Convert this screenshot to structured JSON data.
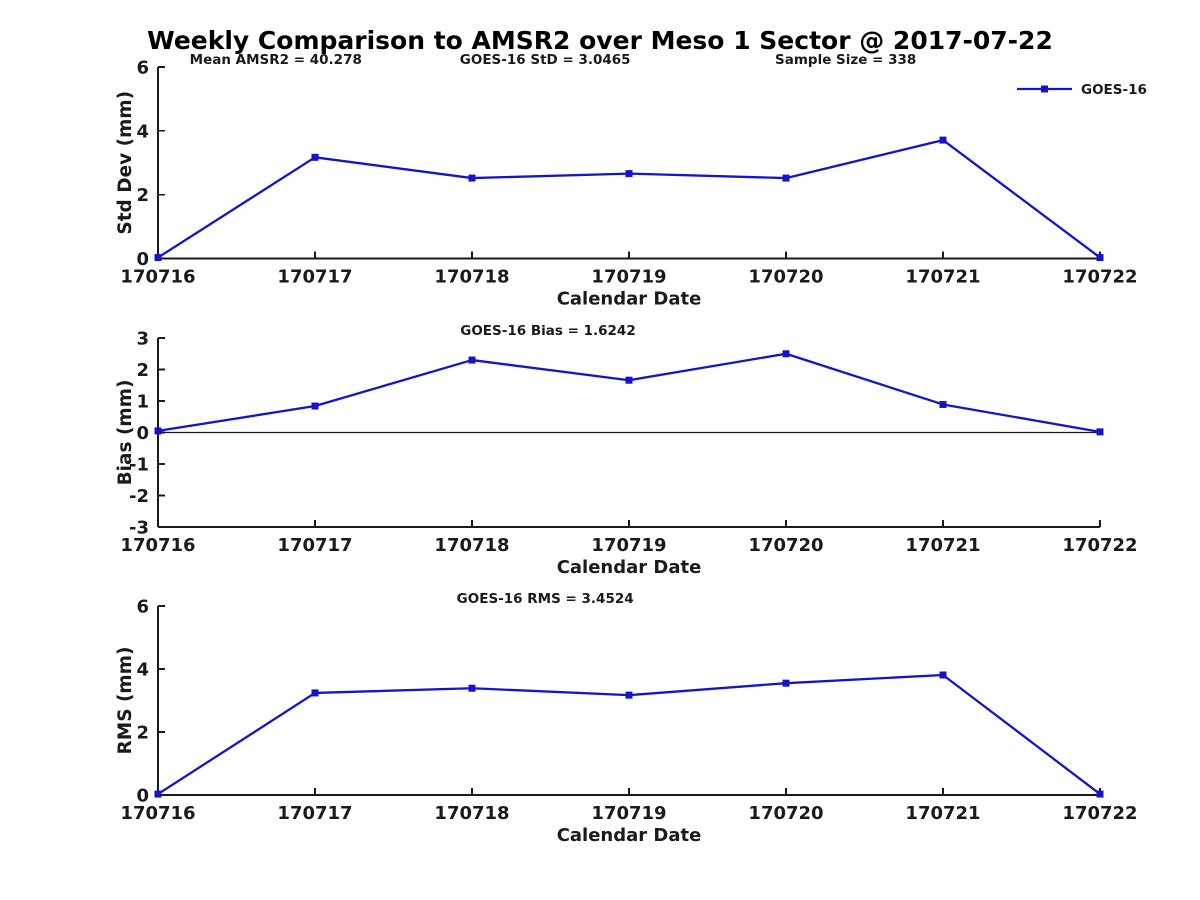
{
  "title": "Weekly Comparison to AMSR2 over Meso 1 Sector @ 2017-07-22",
  "colors": {
    "series": "#1414cc",
    "axis": "#1a1a1a",
    "background": "#ffffff"
  },
  "legend": {
    "label": "GOES-16",
    "position": "top-right",
    "marker": "filled-square",
    "box": false
  },
  "chart_data": [
    {
      "type": "line",
      "panel": "std-dev",
      "x": [
        "170716",
        "170717",
        "170718",
        "170719",
        "170720",
        "170721",
        "170722"
      ],
      "series": [
        {
          "name": "GOES-16",
          "values": [
            0.03,
            3.17,
            2.52,
            2.66,
            2.52,
            3.71,
            0.03
          ]
        }
      ],
      "xlabel": "Calendar Date",
      "ylabel": "Std Dev (mm)",
      "ylim": [
        0,
        6
      ],
      "yticks": [
        0,
        2,
        4,
        6
      ],
      "grid": false,
      "zero_line": false,
      "show_legend": true,
      "annotations": [
        {
          "text": "Mean AMSR2 = 40.278",
          "xfrac": 0.125
        },
        {
          "text": "GOES-16 StD = 3.0465",
          "xfrac": 0.411
        },
        {
          "text": "Sample Size = 338",
          "xfrac": 0.73
        }
      ]
    },
    {
      "type": "line",
      "panel": "bias",
      "x": [
        "170716",
        "170717",
        "170718",
        "170719",
        "170720",
        "170721",
        "170722"
      ],
      "series": [
        {
          "name": "GOES-16",
          "values": [
            0.05,
            0.84,
            2.3,
            1.66,
            2.5,
            0.89,
            0.02
          ]
        }
      ],
      "xlabel": "Calendar Date",
      "ylabel": "Bias (mm)",
      "ylim": [
        -3,
        3
      ],
      "yticks": [
        -3,
        -2,
        -1,
        0,
        1,
        2,
        3
      ],
      "grid": false,
      "zero_line": true,
      "show_legend": false,
      "annotations": [
        {
          "text": "GOES-16 Bias  = 1.6242",
          "xfrac": 0.414
        }
      ]
    },
    {
      "type": "line",
      "panel": "rms",
      "x": [
        "170716",
        "170717",
        "170718",
        "170719",
        "170720",
        "170721",
        "170722"
      ],
      "series": [
        {
          "name": "GOES-16",
          "values": [
            0.03,
            3.24,
            3.39,
            3.17,
            3.55,
            3.81,
            0.03
          ]
        }
      ],
      "xlabel": "Calendar Date",
      "ylabel": "RMS (mm)",
      "ylim": [
        0,
        6
      ],
      "yticks": [
        0,
        2,
        4,
        6
      ],
      "grid": false,
      "zero_line": false,
      "show_legend": false,
      "annotations": [
        {
          "text": "GOES-16 RMS = 3.4524",
          "xfrac": 0.411
        }
      ]
    }
  ]
}
